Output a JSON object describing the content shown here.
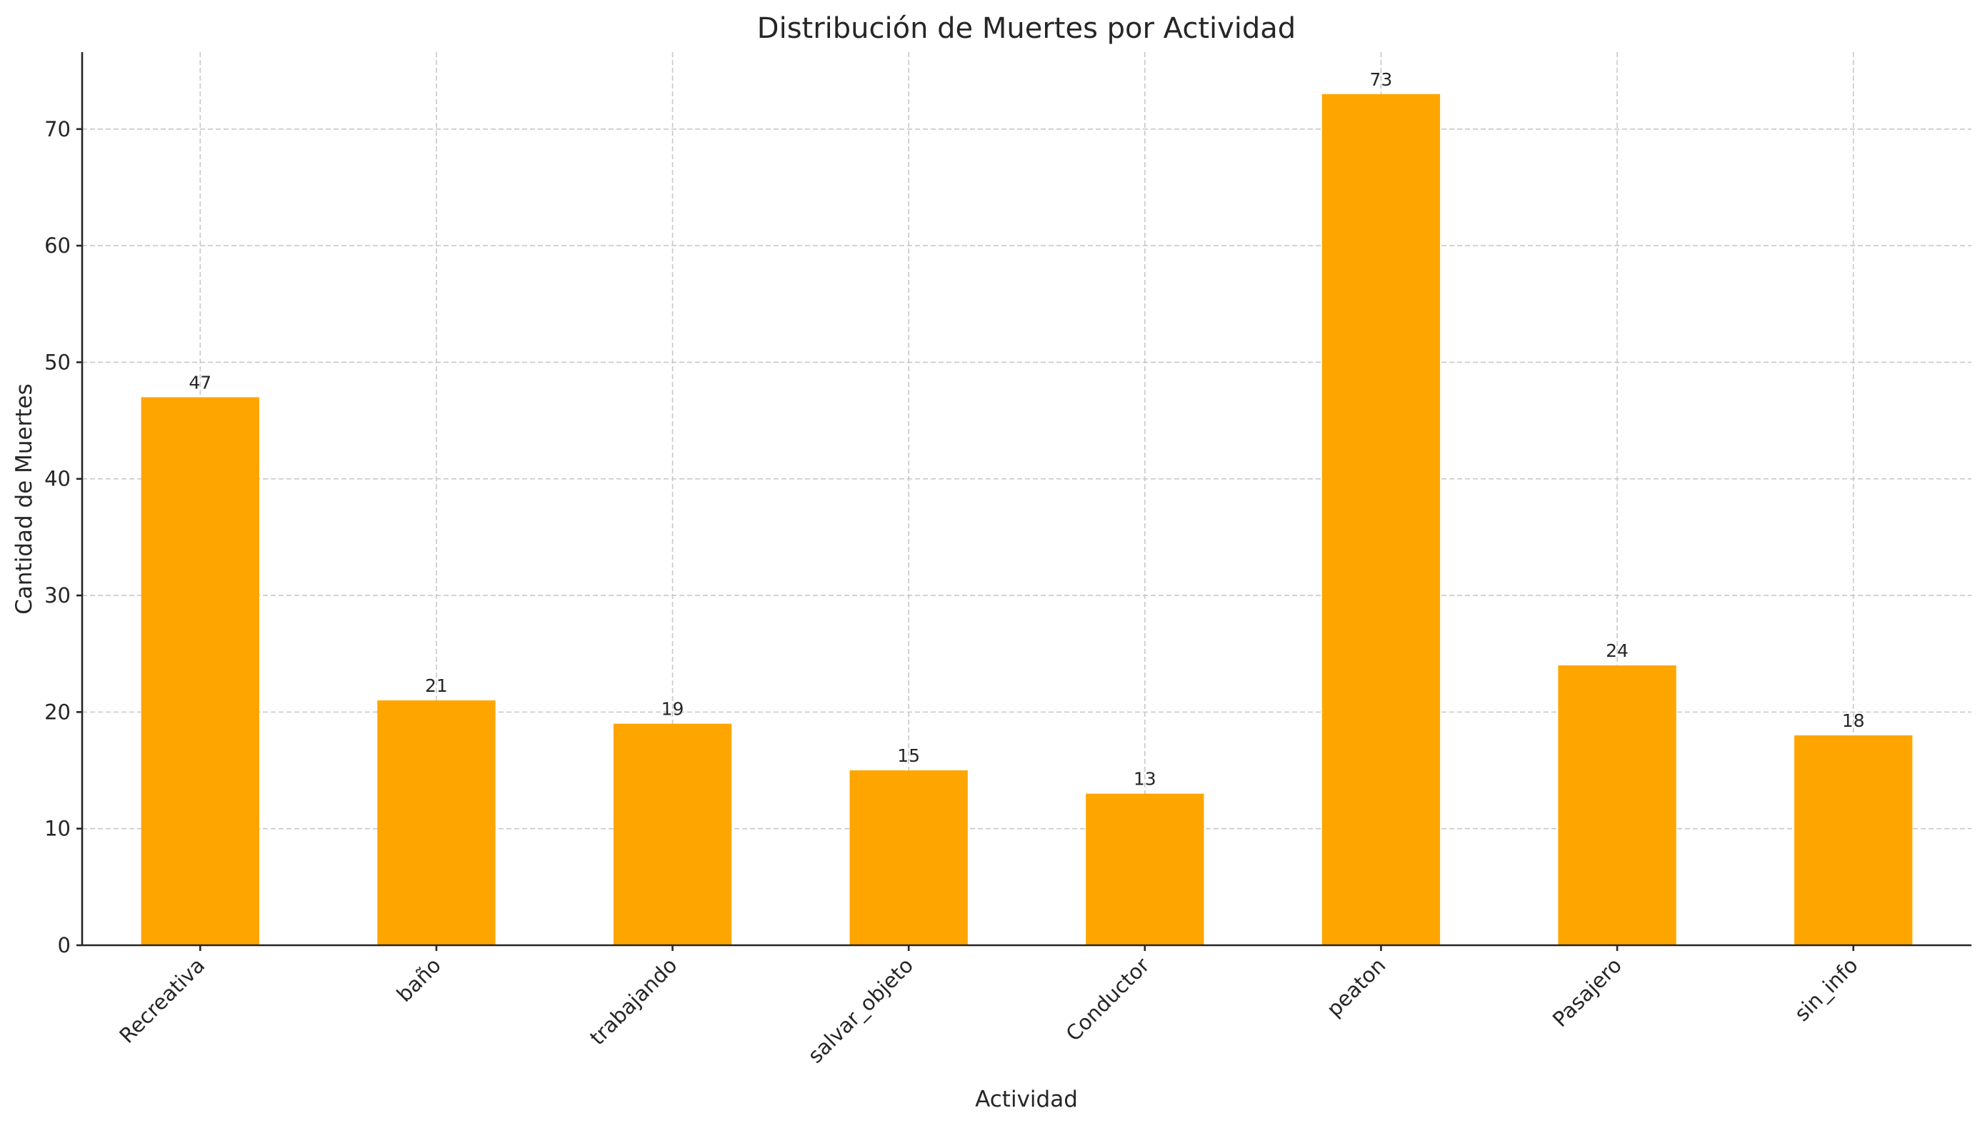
{
  "chart_data": {
    "type": "bar",
    "title": "Distribución de Muertes por Actividad",
    "xlabel": "Actividad",
    "ylabel": "Cantidad de Muertes",
    "categories": [
      "Recreativa",
      "baño",
      "trabajando",
      "salvar_objeto",
      "Conductor",
      "peaton",
      "Pasajero",
      "sin_info"
    ],
    "values": [
      47,
      21,
      19,
      15,
      13,
      73,
      24,
      18
    ],
    "ylim": [
      0,
      76.6
    ],
    "yticks": [
      0,
      10,
      20,
      30,
      40,
      50,
      60,
      70
    ],
    "grid": true,
    "bar_color": "#FFA500",
    "data_labels": true
  }
}
